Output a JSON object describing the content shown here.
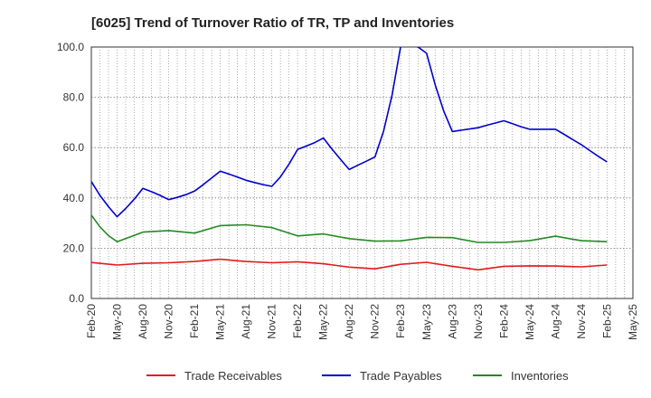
{
  "chart_data": {
    "type": "line",
    "title": "[6025]  Trend of Turnover Ratio of TR, TP and Inventories",
    "xlabel": "",
    "ylabel": "",
    "ylim": [
      0,
      100
    ],
    "y_ticks": [
      "0.0",
      "20.0",
      "40.0",
      "60.0",
      "80.0",
      "100.0"
    ],
    "x_ticks": [
      "Feb-20",
      "May-20",
      "Aug-20",
      "Nov-20",
      "Feb-21",
      "May-21",
      "Aug-21",
      "Nov-21",
      "Feb-22",
      "May-22",
      "Aug-22",
      "Nov-22",
      "Feb-23",
      "May-23",
      "Aug-23",
      "Nov-23",
      "Feb-24",
      "May-24",
      "Aug-24",
      "Nov-24",
      "Feb-25",
      "May-25"
    ],
    "grid": true,
    "legend_position": "bottom",
    "series": [
      {
        "name": "Trade Receivables",
        "color": "#e31a1c",
        "points": [
          [
            0,
            14.3
          ],
          [
            3,
            13.3
          ],
          [
            6,
            14.0
          ],
          [
            9,
            14.2
          ],
          [
            12,
            14.7
          ],
          [
            15,
            15.6
          ],
          [
            18,
            14.7
          ],
          [
            21,
            14.2
          ],
          [
            24,
            14.6
          ],
          [
            27,
            13.8
          ],
          [
            30,
            12.5
          ],
          [
            33,
            11.8
          ],
          [
            36,
            13.6
          ],
          [
            39,
            14.4
          ],
          [
            42,
            12.8
          ],
          [
            45,
            11.4
          ],
          [
            48,
            12.8
          ],
          [
            51,
            13.0
          ],
          [
            54,
            12.9
          ],
          [
            57,
            12.6
          ],
          [
            60,
            13.3
          ]
        ]
      },
      {
        "name": "Trade Payables",
        "color": "#0000cc",
        "points": [
          [
            0,
            46.5
          ],
          [
            1,
            41.0
          ],
          [
            2,
            36.5
          ],
          [
            3,
            32.5
          ],
          [
            4,
            35.8
          ],
          [
            5,
            39.5
          ],
          [
            6,
            43.8
          ],
          [
            7,
            42.5
          ],
          [
            8,
            41.0
          ],
          [
            9,
            39.3
          ],
          [
            10,
            40.2
          ],
          [
            11,
            41.3
          ],
          [
            12,
            42.7
          ],
          [
            13,
            45.2
          ],
          [
            14,
            47.9
          ],
          [
            15,
            50.6
          ],
          [
            16,
            49.5
          ],
          [
            17,
            48.3
          ],
          [
            18,
            47.0
          ],
          [
            19,
            46.1
          ],
          [
            20,
            45.3
          ],
          [
            21,
            44.6
          ],
          [
            22,
            48.3
          ],
          [
            23,
            53.5
          ],
          [
            24,
            59.3
          ],
          [
            25,
            60.6
          ],
          [
            26,
            62.0
          ],
          [
            27,
            63.8
          ],
          [
            28,
            59.4
          ],
          [
            29,
            55.3
          ],
          [
            30,
            51.3
          ],
          [
            31,
            53.0
          ],
          [
            32,
            54.6
          ],
          [
            33,
            56.3
          ],
          [
            34,
            66.5
          ],
          [
            35,
            81.0
          ],
          [
            36,
            100.4
          ],
          [
            37,
            101.5
          ],
          [
            38,
            100.0
          ],
          [
            39,
            97.5
          ],
          [
            40,
            85.0
          ],
          [
            41,
            74.5
          ],
          [
            42,
            66.4
          ],
          [
            43,
            66.9
          ],
          [
            44,
            67.4
          ],
          [
            45,
            67.9
          ],
          [
            46,
            68.9
          ],
          [
            47,
            69.8
          ],
          [
            48,
            70.7
          ],
          [
            49,
            69.5
          ],
          [
            50,
            68.3
          ],
          [
            51,
            67.3
          ],
          [
            52,
            67.3
          ],
          [
            53,
            67.3
          ],
          [
            54,
            67.3
          ],
          [
            55,
            65.3
          ],
          [
            56,
            63.2
          ],
          [
            57,
            61.2
          ],
          [
            58,
            58.8
          ],
          [
            59,
            56.5
          ],
          [
            60,
            54.3
          ]
        ]
      },
      {
        "name": "Inventories",
        "color": "#228b22",
        "points": [
          [
            0,
            33.2
          ],
          [
            1,
            28.5
          ],
          [
            2,
            25.0
          ],
          [
            3,
            22.6
          ],
          [
            4,
            23.8
          ],
          [
            5,
            25.1
          ],
          [
            6,
            26.4
          ],
          [
            9,
            27.0
          ],
          [
            12,
            26.0
          ],
          [
            15,
            29.0
          ],
          [
            18,
            29.3
          ],
          [
            21,
            28.2
          ],
          [
            24,
            24.9
          ],
          [
            27,
            25.7
          ],
          [
            30,
            23.8
          ],
          [
            33,
            22.8
          ],
          [
            36,
            22.9
          ],
          [
            39,
            24.3
          ],
          [
            42,
            24.2
          ],
          [
            45,
            22.3
          ],
          [
            48,
            22.3
          ],
          [
            51,
            23.0
          ],
          [
            54,
            24.8
          ],
          [
            57,
            23.0
          ],
          [
            60,
            22.6
          ]
        ]
      }
    ]
  }
}
